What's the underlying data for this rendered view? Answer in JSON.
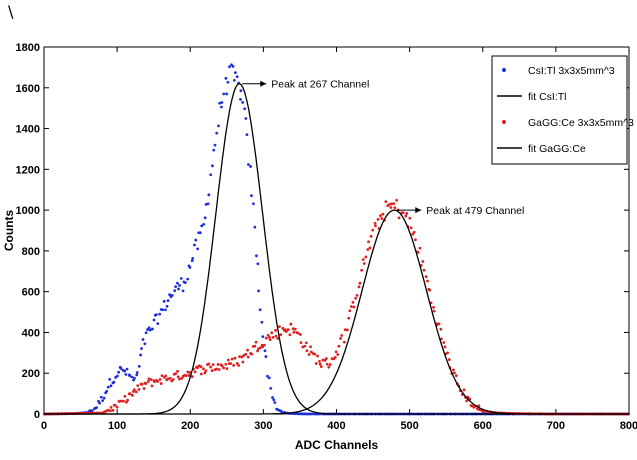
{
  "corner_mark": "\\",
  "chart_data": {
    "type": "scatter",
    "title": "",
    "xlabel": "ADC Channels",
    "ylabel": "Counts",
    "xlim": [
      0,
      800
    ],
    "ylim": [
      0,
      1800
    ],
    "x_ticks": [
      0,
      100,
      200,
      300,
      400,
      500,
      600,
      700,
      800
    ],
    "y_ticks": [
      0,
      200,
      400,
      600,
      800,
      1000,
      1200,
      1400,
      1600,
      1800
    ],
    "grid": false,
    "legend_position": "top-right",
    "legend": [
      {
        "label": "CsI:Tl 3x3x5mm^3",
        "kind": "marker",
        "color": "#1f2fd8"
      },
      {
        "label": "fit CsI:Tl",
        "kind": "line",
        "color": "#000000"
      },
      {
        "label": "GaGG:Ce 3x3x5mm^3",
        "kind": "marker",
        "color": "#e02020"
      },
      {
        "label": "fit GaGG:Ce",
        "kind": "line",
        "color": "#000000"
      }
    ],
    "series": [
      {
        "name": "CsI:Tl 3x3x5mm^3",
        "kind": "scatter",
        "color": "#1f2fd8",
        "x": [
          0,
          40,
          60,
          70,
          80,
          90,
          100,
          105,
          110,
          115,
          120,
          125,
          130,
          135,
          140,
          145,
          150,
          155,
          160,
          165,
          170,
          175,
          180,
          185,
          190,
          195,
          200,
          205,
          210,
          215,
          220,
          225,
          230,
          235,
          240,
          245,
          250,
          255,
          260,
          265,
          267,
          270,
          275,
          280,
          285,
          290,
          295,
          300,
          305,
          310,
          315,
          320,
          330,
          340,
          360,
          400,
          500,
          600,
          700,
          800
        ],
        "y": [
          0,
          2,
          8,
          30,
          80,
          150,
          200,
          215,
          210,
          195,
          175,
          165,
          230,
          330,
          380,
          410,
          440,
          470,
          500,
          530,
          560,
          590,
          610,
          630,
          640,
          680,
          730,
          790,
          830,
          880,
          960,
          1090,
          1230,
          1360,
          1480,
          1570,
          1620,
          1670,
          1640,
          1620,
          1600,
          1560,
          1440,
          1260,
          1050,
          800,
          580,
          380,
          230,
          120,
          60,
          20,
          5,
          2,
          0,
          0,
          0,
          0,
          0,
          0
        ]
      },
      {
        "name": "GaGG:Ce 3x3x5mm^3",
        "kind": "scatter",
        "color": "#e02020",
        "x": [
          0,
          80,
          100,
          120,
          140,
          160,
          180,
          200,
          220,
          240,
          250,
          260,
          270,
          280,
          290,
          300,
          310,
          320,
          330,
          340,
          350,
          360,
          370,
          380,
          390,
          400,
          410,
          420,
          430,
          440,
          450,
          460,
          470,
          479,
          490,
          500,
          510,
          520,
          530,
          540,
          550,
          560,
          570,
          580,
          590,
          600,
          620,
          650,
          700,
          800
        ],
        "y": [
          0,
          5,
          40,
          100,
          150,
          170,
          185,
          205,
          225,
          235,
          240,
          250,
          270,
          300,
          330,
          360,
          380,
          400,
          420,
          415,
          380,
          320,
          280,
          250,
          250,
          300,
          380,
          500,
          640,
          780,
          880,
          960,
          1010,
          1020,
          990,
          930,
          830,
          700,
          560,
          420,
          300,
          200,
          120,
          70,
          35,
          15,
          5,
          2,
          0,
          0
        ]
      },
      {
        "name": "fit CsI:Tl",
        "kind": "line",
        "color": "#000000",
        "peak": 1620,
        "center": 267,
        "sigma": 32,
        "xrange": [
          0,
          800
        ]
      },
      {
        "name": "fit GaGG:Ce",
        "kind": "line",
        "color": "#000000",
        "peak": 1000,
        "center": 479,
        "sigma": 44,
        "xrange": [
          0,
          800
        ]
      }
    ],
    "annotations": [
      {
        "text": "Peak at 267 Channel",
        "x": 267,
        "y": 1620,
        "arrow": true
      },
      {
        "text": "Peak at 479 Channel",
        "x": 479,
        "y": 1000,
        "arrow": true
      }
    ]
  }
}
